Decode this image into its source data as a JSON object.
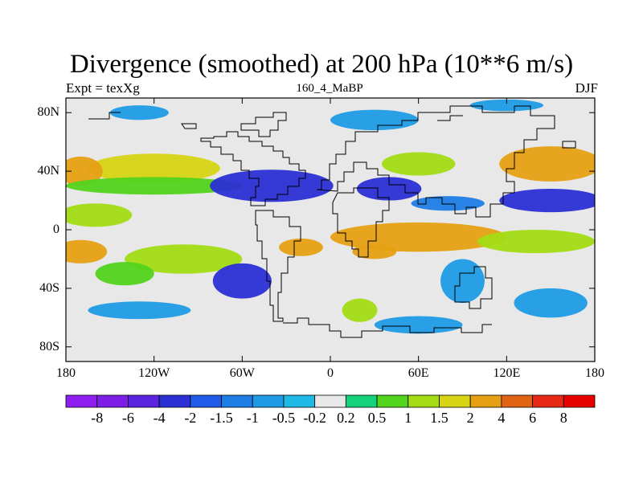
{
  "chart_data": {
    "type": "heatmap",
    "title": "Divergence (smoothed) at 200 hPa (10**6 m/s)",
    "left_subtitle": "Expt = texXg",
    "center_subtitle": "160_4_MaBP",
    "right_subtitle": "DJF",
    "x_range": [
      -180,
      180
    ],
    "y_range": [
      -90,
      90
    ],
    "x_ticks": [
      {
        "value": -180,
        "label": "180"
      },
      {
        "value": -120,
        "label": "120W"
      },
      {
        "value": -60,
        "label": "60W"
      },
      {
        "value": 0,
        "label": "0"
      },
      {
        "value": 60,
        "label": "60E"
      },
      {
        "value": 120,
        "label": "120E"
      },
      {
        "value": 180,
        "label": "180"
      }
    ],
    "y_ticks": [
      {
        "value": 80,
        "label": "80N"
      },
      {
        "value": 40,
        "label": "40N"
      },
      {
        "value": 0,
        "label": "0"
      },
      {
        "value": -40,
        "label": "40S"
      },
      {
        "value": -80,
        "label": "80S"
      }
    ],
    "colorbar": {
      "levels": [
        "-8",
        "-6",
        "-4",
        "-2",
        "-1.5",
        "-1",
        "-0.5",
        "-0.2",
        "0.2",
        "0.5",
        "1",
        "1.5",
        "2",
        "4",
        "6",
        "8"
      ],
      "colors": [
        "#8f1ef0",
        "#7d1ee6",
        "#5a24e0",
        "#2b2fd4",
        "#1f5be6",
        "#1f7de6",
        "#1f9be6",
        "#1fb9e6",
        "#e8e8e8",
        "#14d27a",
        "#52d31c",
        "#a3dc14",
        "#d7d414",
        "#e6a014",
        "#e06414",
        "#e62814",
        "#e60000"
      ]
    },
    "field_blobs": [
      {
        "lon": -120,
        "lat": 42,
        "rx": 45,
        "ry": 10,
        "v": 2
      },
      {
        "lon": -170,
        "lat": 40,
        "rx": 15,
        "ry": 10,
        "v": 3
      },
      {
        "lon": -120,
        "lat": 30,
        "rx": 60,
        "ry": 6,
        "v": 0.7
      },
      {
        "lon": -40,
        "lat": 30,
        "rx": 42,
        "ry": 11,
        "v": -2.2
      },
      {
        "lon": 40,
        "lat": 28,
        "rx": 22,
        "ry": 8,
        "v": -2.5
      },
      {
        "lon": 150,
        "lat": 20,
        "rx": 35,
        "ry": 8,
        "v": -2.2
      },
      {
        "lon": 80,
        "lat": 18,
        "rx": 25,
        "ry": 5,
        "v": -1.2
      },
      {
        "lon": 150,
        "lat": 45,
        "rx": 35,
        "ry": 12,
        "v": 2.5
      },
      {
        "lon": 60,
        "lat": 45,
        "rx": 25,
        "ry": 8,
        "v": 1.2
      },
      {
        "lon": -160,
        "lat": 10,
        "rx": 25,
        "ry": 8,
        "v": 1.3
      },
      {
        "lon": 60,
        "lat": -5,
        "rx": 60,
        "ry": 10,
        "v": 2.5
      },
      {
        "lon": 140,
        "lat": -8,
        "rx": 40,
        "ry": 8,
        "v": 1.4
      },
      {
        "lon": 30,
        "lat": -15,
        "rx": 15,
        "ry": 5,
        "v": 4
      },
      {
        "lon": -170,
        "lat": -15,
        "rx": 18,
        "ry": 8,
        "v": 2.4
      },
      {
        "lon": -20,
        "lat": -12,
        "rx": 15,
        "ry": 6,
        "v": 4
      },
      {
        "lon": -100,
        "lat": -20,
        "rx": 40,
        "ry": 10,
        "v": 1.2
      },
      {
        "lon": -60,
        "lat": -35,
        "rx": 20,
        "ry": 12,
        "v": -2.5
      },
      {
        "lon": -140,
        "lat": -30,
        "rx": 20,
        "ry": 8,
        "v": 0.8
      },
      {
        "lon": 20,
        "lat": -55,
        "rx": 12,
        "ry": 8,
        "v": 1.2
      },
      {
        "lon": -130,
        "lat": -55,
        "rx": 35,
        "ry": 6,
        "v": -0.8
      },
      {
        "lon": 60,
        "lat": -65,
        "rx": 30,
        "ry": 6,
        "v": -0.8
      },
      {
        "lon": 150,
        "lat": -50,
        "rx": 25,
        "ry": 10,
        "v": -0.8
      },
      {
        "lon": 90,
        "lat": -35,
        "rx": 15,
        "ry": 15,
        "v": -0.8
      },
      {
        "lon": -130,
        "lat": 80,
        "rx": 20,
        "ry": 5,
        "v": -0.7
      },
      {
        "lon": 30,
        "lat": 75,
        "rx": 30,
        "ry": 7,
        "v": -0.7
      },
      {
        "lon": 120,
        "lat": 85,
        "rx": 25,
        "ry": 4,
        "v": -0.7
      }
    ]
  }
}
